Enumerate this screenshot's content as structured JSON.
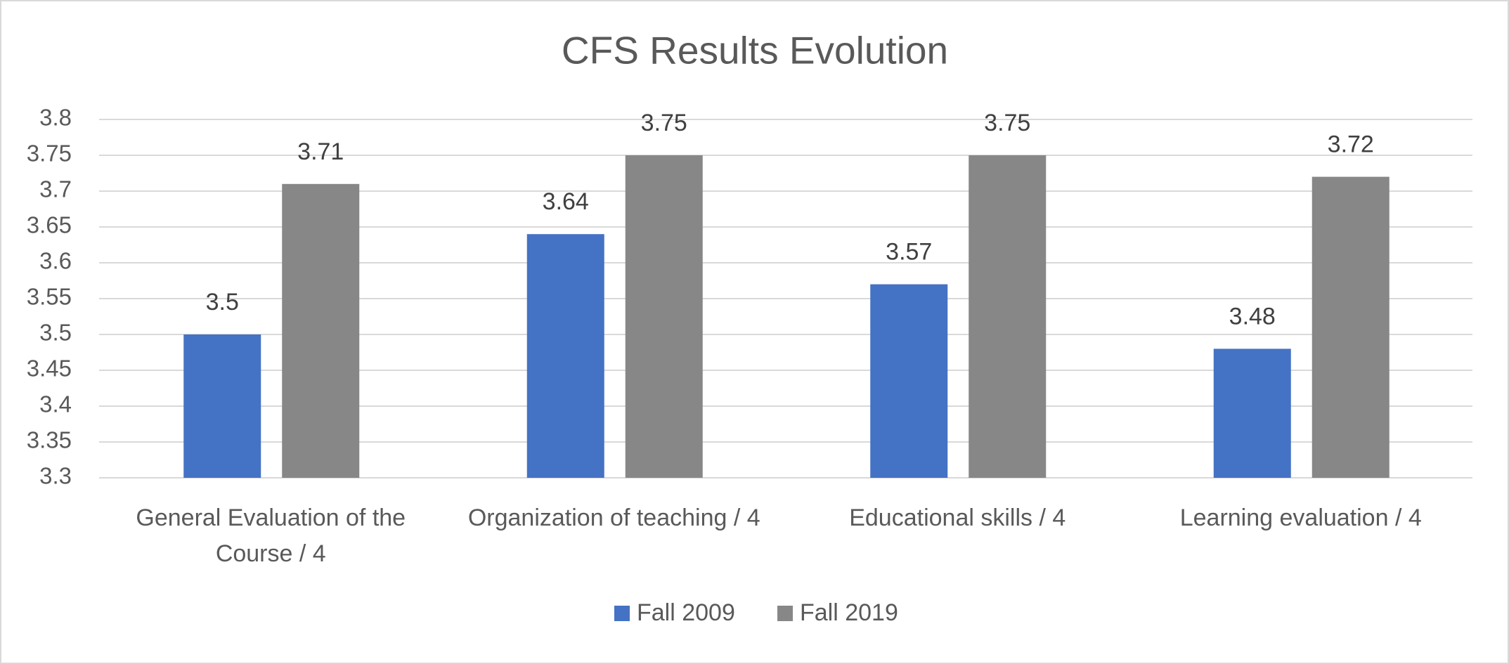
{
  "chart_data": {
    "type": "bar",
    "title": "CFS Results Evolution",
    "categories": [
      "General Evaluation of the Course / 4",
      "Organization of teaching / 4",
      "Educational skills / 4",
      "Learning evaluation / 4"
    ],
    "series": [
      {
        "name": "Fall 2009",
        "color": "#4472c4",
        "values": [
          3.5,
          3.64,
          3.57,
          3.48
        ]
      },
      {
        "name": "Fall 2019",
        "color": "#878787",
        "values": [
          3.71,
          3.75,
          3.75,
          3.72
        ]
      }
    ],
    "ylim": [
      3.3,
      3.8
    ],
    "yticks": [
      3.3,
      3.35,
      3.4,
      3.45,
      3.5,
      3.55,
      3.6,
      3.65,
      3.7,
      3.75,
      3.8
    ],
    "grid": true,
    "legend": "bottom"
  }
}
